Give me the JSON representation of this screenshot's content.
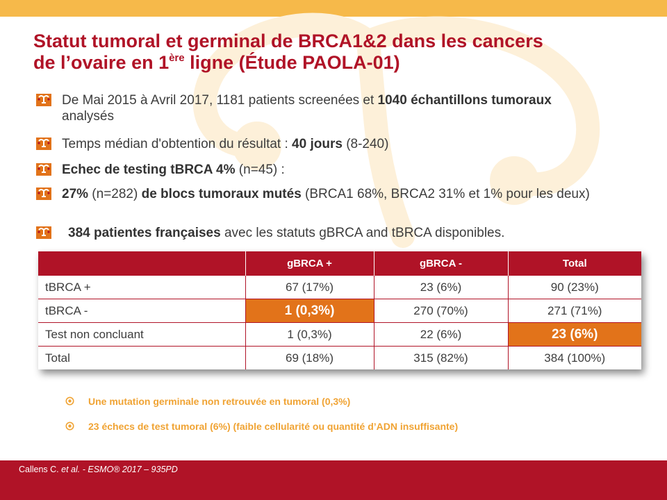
{
  "colors": {
    "accent_red": "#b01327",
    "orange_highlight": "#e2731a",
    "yellow_bar": "#f6b94a",
    "note_orange": "#f0a333"
  },
  "title": {
    "line1": "Statut tumoral et germinal de BRCA1&2 dans les cancers",
    "line2_pre": "de l’ovaire en 1",
    "line2_sup": "ère",
    "line2_post": " ligne (Étude PAOLA-01)"
  },
  "bullet_icon": "uterus-icon",
  "bullets": [
    {
      "t1": "De Mai 2015 à Avril 2017, 1181 patients screenées et ",
      "b1": "1040 échantillons tumoraux",
      "t2": "analysés"
    },
    {
      "t1": "Temps médian d'obtention du résultat : ",
      "b1": "40 jours",
      "t2": " (8-240)"
    },
    {
      "b1": "Echec de testing tBRCA 4%",
      "t2": " (n=45) :"
    },
    {
      "b1": "27%",
      "t2": " (n=282) ",
      "b2": "de blocs tumoraux mutés",
      "t3": " (BRCA1 68%, BRCA2 31% et 1% pour les deux)"
    },
    {
      "b1": "384 patientes françaises",
      "t2": " avec les statuts gBRCA and tBRCA disponibles."
    }
  ],
  "table": {
    "headers": [
      "",
      "gBRCA +",
      "gBRCA -",
      "Total"
    ],
    "rows": [
      [
        "tBRCA +",
        "67 (17%)",
        "23 (6%)",
        "90 (23%)"
      ],
      [
        "tBRCA -",
        "1 (0,3%)",
        "270 (70%)",
        "271 (71%)"
      ],
      [
        "Test non concluant",
        "1 (0,3%)",
        "22 (6%)",
        "23 (6%)"
      ],
      [
        "Total",
        "69 (18%)",
        "315 (82%)",
        "384 (100%)"
      ]
    ]
  },
  "note_icon": "circle-dot-icon",
  "notes": [
    "Une mutation germinale non retrouvée en tumoral   (0,3%)",
    "23  échecs de test tumoral (6%)  (faible cellularité ou  quantité d’ADN insuffisante)"
  ],
  "footer": {
    "author": "Callens C. ",
    "etal": "et al.",
    "rest": " - ESMO® 2017 –  935PD"
  }
}
